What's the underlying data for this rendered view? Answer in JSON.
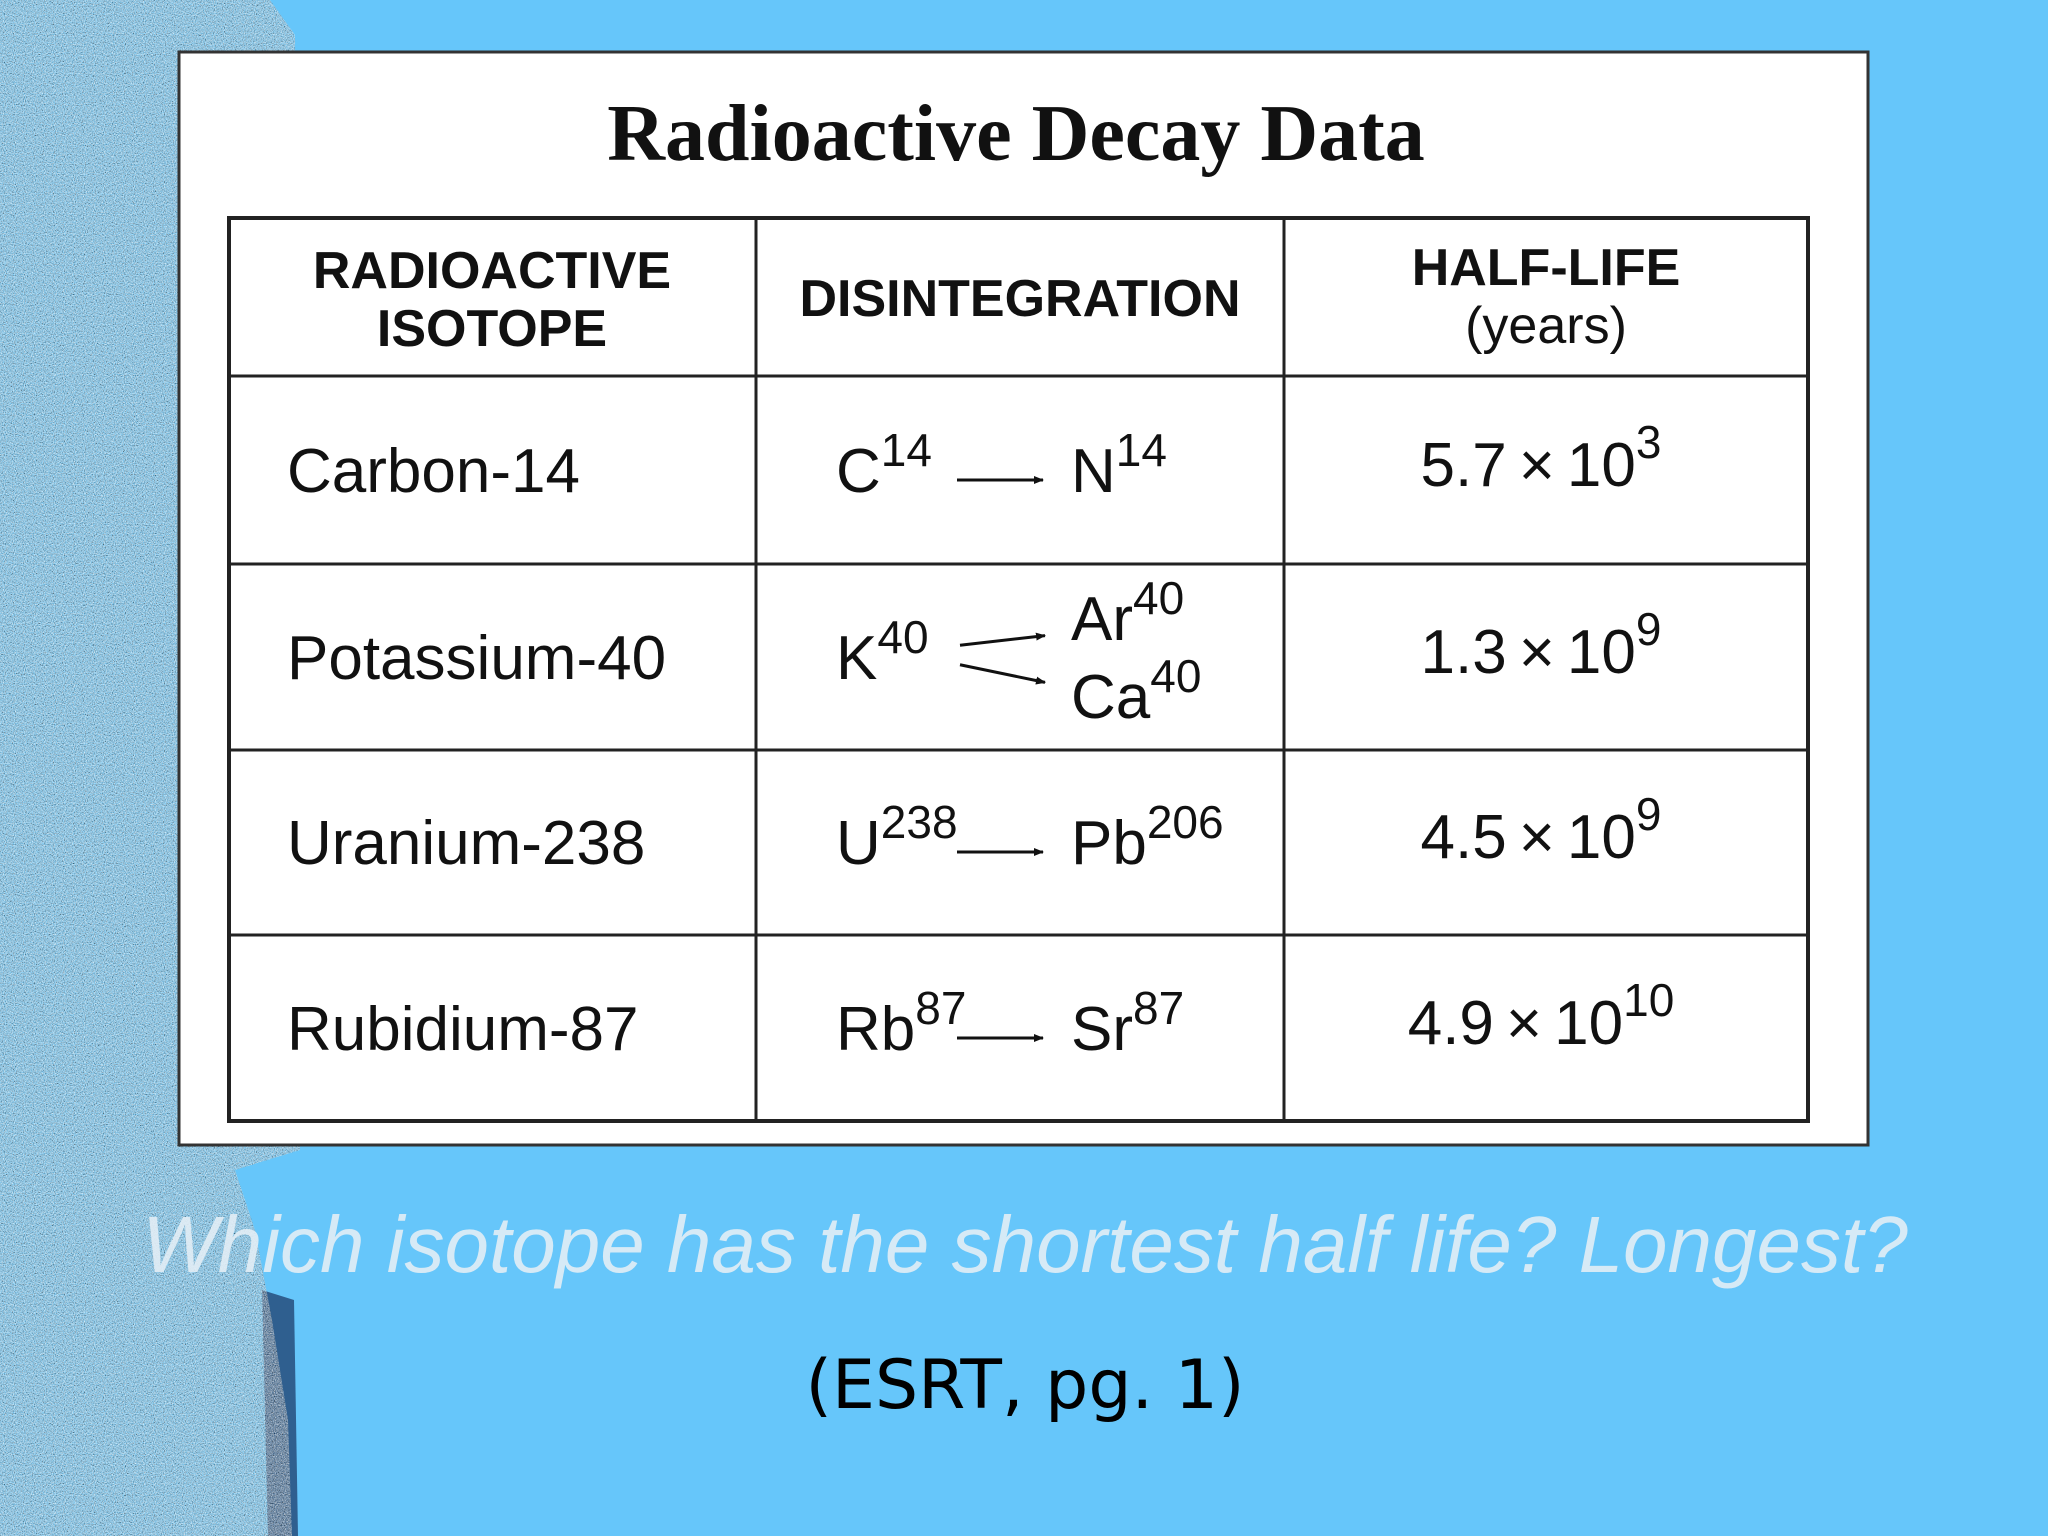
{
  "slide": {
    "table": {
      "title": "Radioactive Decay Data",
      "header": {
        "isotope": [
          "RADIOACTIVE",
          "ISOTOPE"
        ],
        "disintegration": "DISINTEGRATION",
        "half_life": [
          "HALF-LIFE",
          "(years)"
        ]
      },
      "rows": [
        {
          "isotope": "Carbon-14",
          "parent": {
            "symbol": "C",
            "mass": "14"
          },
          "products": [
            {
              "symbol": "N",
              "mass": "14"
            }
          ],
          "half_life": {
            "mantissa": "5.7",
            "times": "×",
            "base": "10",
            "exponent": "3"
          }
        },
        {
          "isotope": "Potassium-40",
          "parent": {
            "symbol": "K",
            "mass": "40"
          },
          "products": [
            {
              "symbol": "Ar",
              "mass": "40"
            },
            {
              "symbol": "Ca",
              "mass": "40"
            }
          ],
          "half_life": {
            "mantissa": "1.3",
            "times": "×",
            "base": "10",
            "exponent": "9"
          }
        },
        {
          "isotope": "Uranium-238",
          "parent": {
            "symbol": "U",
            "mass": "238"
          },
          "products": [
            {
              "symbol": "Pb",
              "mass": "206"
            }
          ],
          "half_life": {
            "mantissa": "4.5",
            "times": "×",
            "base": "10",
            "exponent": "9"
          }
        },
        {
          "isotope": "Rubidium-87",
          "parent": {
            "symbol": "Rb",
            "mass": "87"
          },
          "products": [
            {
              "symbol": "Sr",
              "mass": "87"
            }
          ],
          "half_life": {
            "mantissa": "4.9",
            "times": "×",
            "base": "10",
            "exponent": "10"
          }
        }
      ]
    },
    "question": "Which isotope has the shortest half life? Longest?",
    "source": "(ESRT, pg. 1)"
  }
}
